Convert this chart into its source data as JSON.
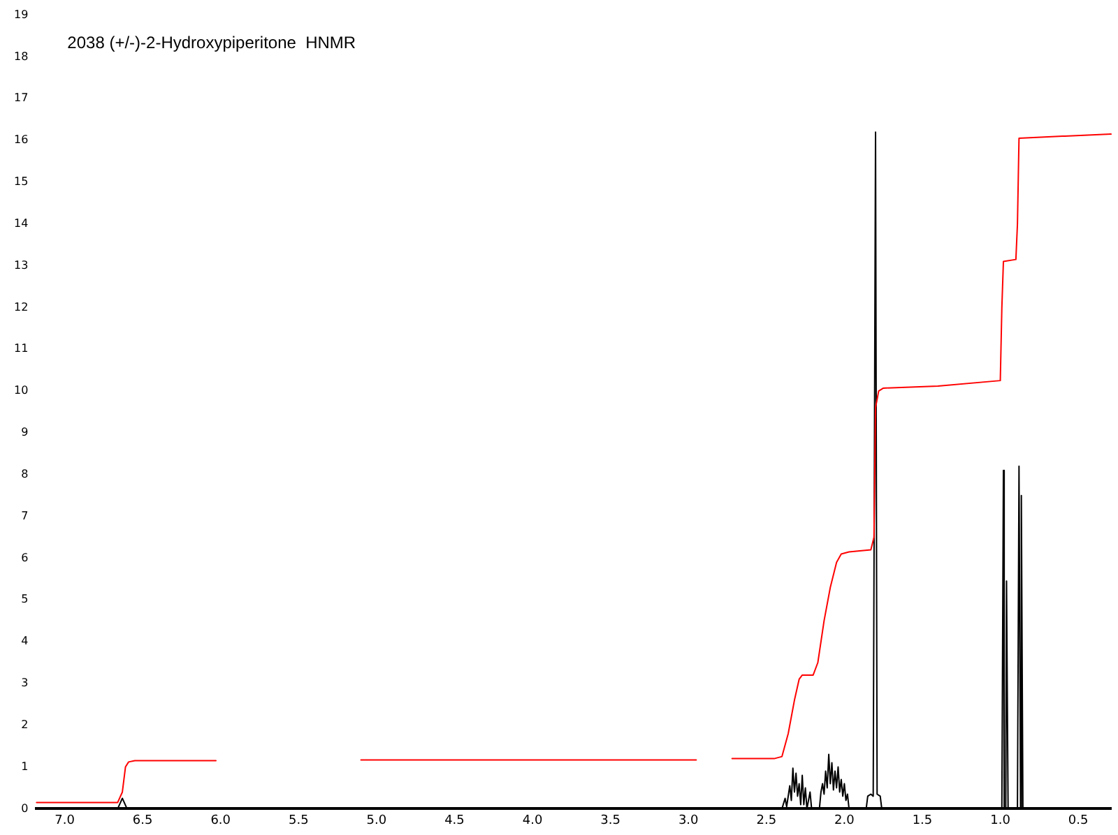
{
  "chart_data": {
    "type": "line",
    "title": "2038 (+/-)-2-Hydroxypiperitone  HNMR",
    "xlim": [
      7.18,
      0.29
    ],
    "xticks": [
      {
        "value": 7,
        "label": "7.0"
      },
      {
        "value": 6.5,
        "label": "6.5"
      },
      {
        "value": 6,
        "label": "6.0"
      },
      {
        "value": 5.5,
        "label": "5.5"
      },
      {
        "value": 5,
        "label": "5.0"
      },
      {
        "value": 4.5,
        "label": "4.5"
      },
      {
        "value": 4,
        "label": "4.0"
      },
      {
        "value": 3.5,
        "label": "3.5"
      },
      {
        "value": 3,
        "label": "3.0"
      },
      {
        "value": 2.5,
        "label": "2.5"
      },
      {
        "value": 2,
        "label": "2.0"
      },
      {
        "value": 1.5,
        "label": "1.5"
      },
      {
        "value": 1,
        "label": "1.0"
      },
      {
        "value": 0.5,
        "label": "0.5"
      }
    ],
    "ylim": [
      0,
      19
    ],
    "yticks": [
      0,
      1,
      2,
      3,
      4,
      5,
      6,
      7,
      8,
      9,
      10,
      11,
      12,
      13,
      14,
      15,
      16,
      17,
      18,
      19
    ],
    "grid": false,
    "legend": false,
    "marker": "none",
    "line_style": "solid",
    "series": [
      {
        "color": "#000000",
        "x": [
          7.18,
          6.66,
          6.63,
          6.6,
          2.42,
          2.4,
          2.38,
          2.37,
          2.35,
          2.34,
          2.33,
          2.32,
          2.31,
          2.3,
          2.29,
          2.28,
          2.27,
          2.26,
          2.25,
          2.24,
          2.22,
          2.21,
          2.16,
          2.15,
          2.14,
          2.13,
          2.12,
          2.11,
          2.1,
          2.09,
          2.08,
          2.07,
          2.06,
          2.05,
          2.04,
          2.03,
          2.02,
          2.01,
          2.0,
          1.99,
          1.98,
          1.97,
          1.86,
          1.85,
          1.83,
          1.815,
          1.8,
          1.79,
          1.77,
          1.76,
          0.99,
          0.98,
          0.975,
          0.965,
          0.96,
          0.95,
          0.89,
          0.88,
          0.87,
          0.865,
          0.855,
          0.29
        ],
        "values": [
          0,
          0,
          0.25,
          0,
          0,
          0,
          0.25,
          0.05,
          0.55,
          0.2,
          0.97,
          0.4,
          0.85,
          0.3,
          0.6,
          0.1,
          0.8,
          0.1,
          0.5,
          0,
          0.4,
          0,
          0,
          0.4,
          0.6,
          0.35,
          0.9,
          0.5,
          1.3,
          0.6,
          1.1,
          0.45,
          0.9,
          0.5,
          1.0,
          0.4,
          0.7,
          0.3,
          0.6,
          0.2,
          0.35,
          0,
          0,
          0.3,
          0.35,
          0.3,
          16.2,
          0.35,
          0.3,
          0,
          0,
          8.1,
          0,
          0,
          5.45,
          0,
          0,
          8.2,
          0,
          7.5,
          0,
          0
        ]
      },
      {
        "color": "#ff0000",
        "x": [
          7.18,
          6.66,
          6.63,
          6.61,
          6.59,
          6.55,
          6.03,
          5.6,
          5.1,
          2.95,
          2.85,
          2.72,
          2.45,
          2.4,
          2.36,
          2.32,
          2.29,
          2.27,
          2.2,
          2.17,
          2.13,
          2.09,
          2.05,
          2.02,
          1.97,
          1.83,
          1.81,
          1.8,
          1.78,
          1.75,
          1.4,
          1.0,
          0.99,
          0.98,
          0.9,
          0.89,
          0.88,
          0.6,
          0.29
        ],
        "values": [
          0.15,
          0.15,
          0.4,
          1.0,
          1.12,
          1.15,
          1.15,
          null,
          1.17,
          1.17,
          null,
          1.2,
          1.2,
          1.25,
          1.8,
          2.6,
          3.1,
          3.2,
          3.2,
          3.5,
          4.5,
          5.3,
          5.9,
          6.1,
          6.15,
          6.2,
          6.5,
          9.6,
          10.0,
          10.07,
          10.12,
          10.25,
          12.0,
          13.1,
          13.15,
          14.0,
          16.05,
          16.1,
          16.15
        ]
      }
    ]
  }
}
